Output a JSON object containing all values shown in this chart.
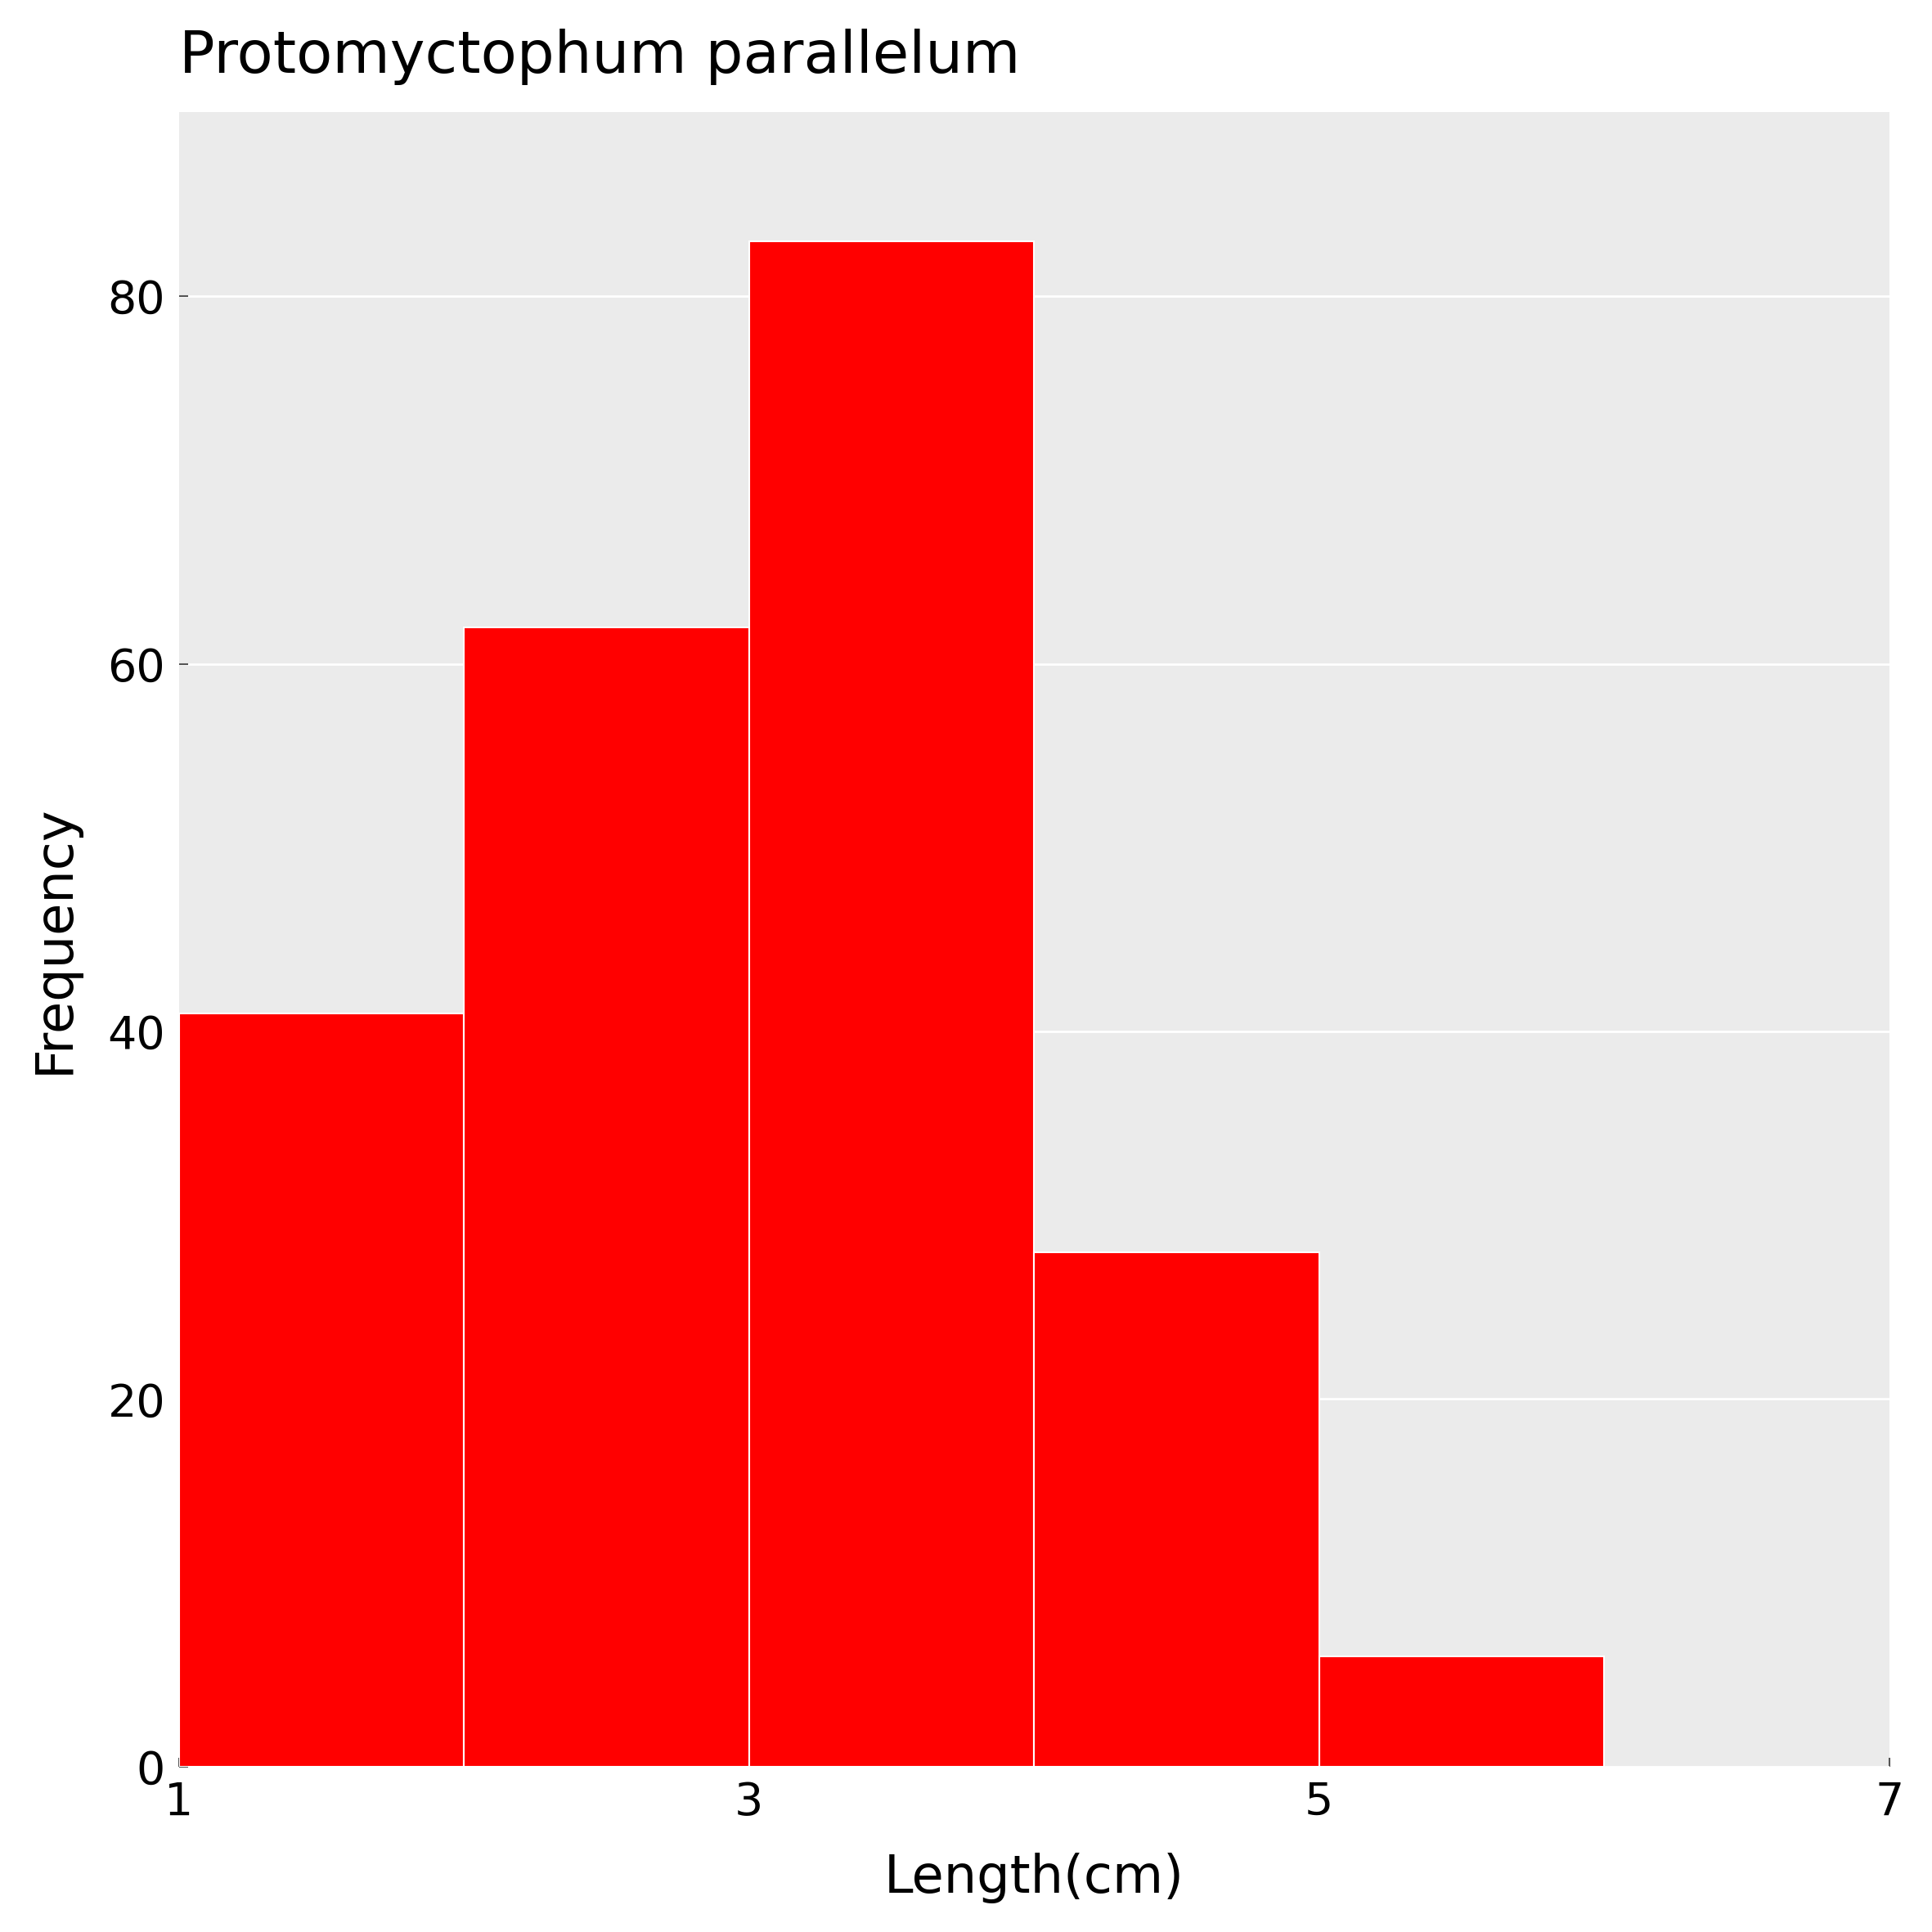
{
  "title": "Protomyctophum parallelum",
  "xlabel": "Length(cm)",
  "ylabel": "Frequency",
  "bar_centers": [
    1.5,
    2.5,
    3.5,
    4.5,
    5.5
  ],
  "bar_heights": [
    41,
    62,
    83,
    28,
    6
  ],
  "bar_width": 1.0,
  "bar_color": "#FF0000",
  "bar_edgecolor": "#FFFFFF",
  "bar_linewidth": 1.5,
  "xlim": [
    1,
    7
  ],
  "ylim": [
    0,
    90
  ],
  "xticks": [
    1,
    3,
    5,
    7
  ],
  "yticks": [
    0,
    20,
    40,
    60,
    80
  ],
  "plot_bg_color": "#EBEBEB",
  "figure_bg_color": "#FFFFFF",
  "grid_color": "#FFFFFF",
  "grid_linewidth": 2.0,
  "title_fontsize": 52,
  "axis_label_fontsize": 46,
  "tick_fontsize": 40
}
